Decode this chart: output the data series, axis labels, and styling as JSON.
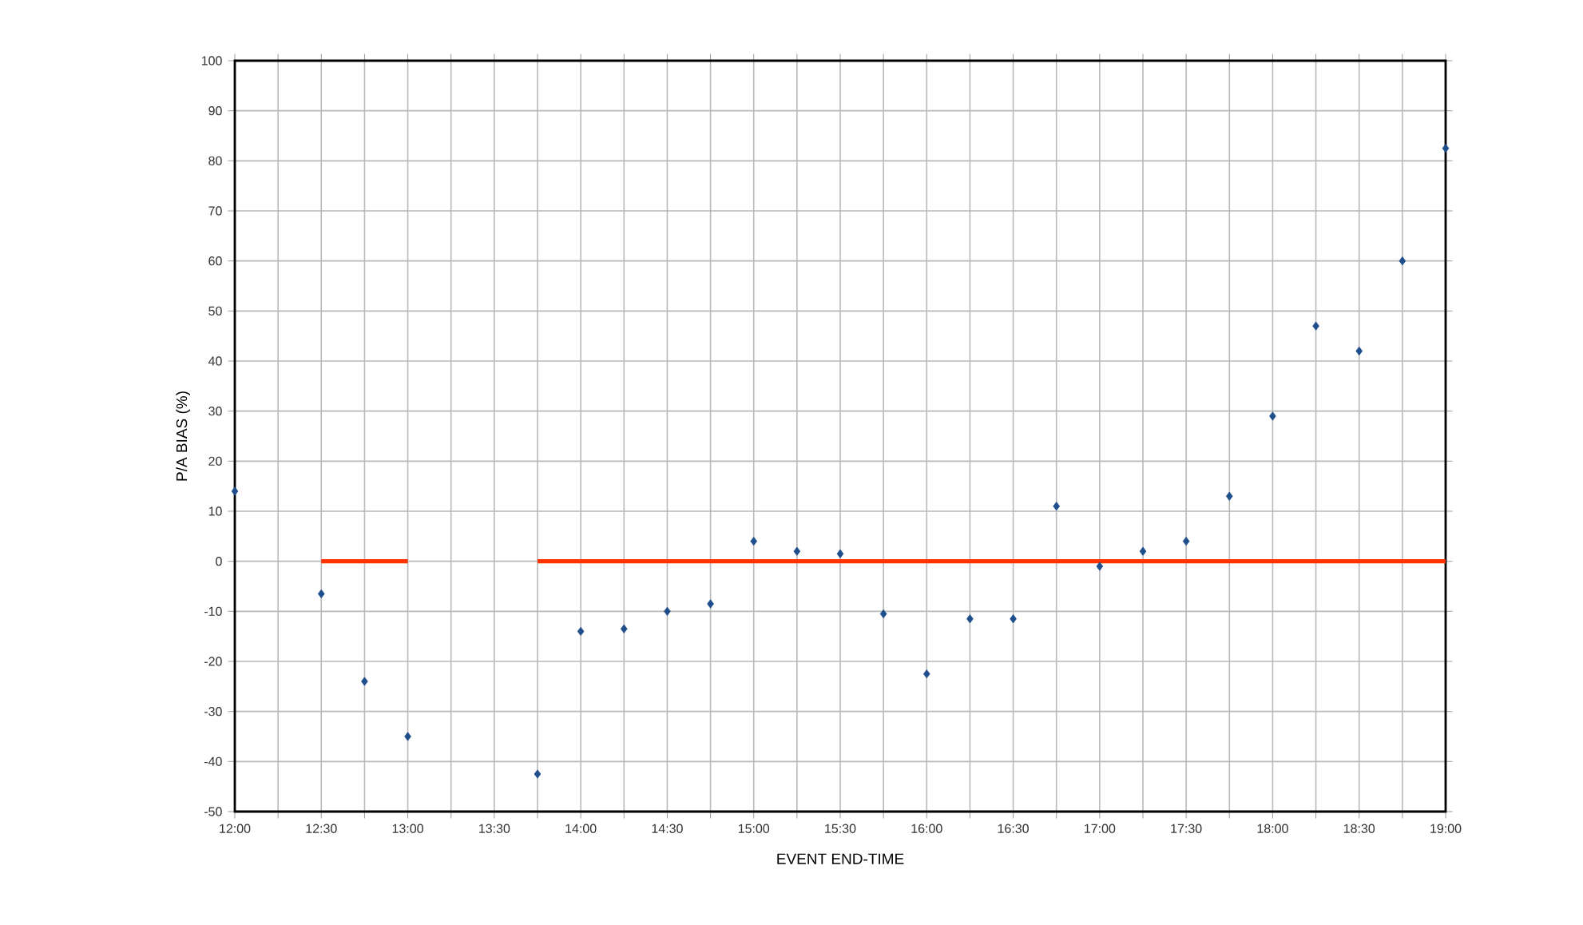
{
  "chart_data": {
    "type": "scatter",
    "xlabel": "EVENT END-TIME",
    "ylabel": "P/A BIAS (%)",
    "xlim": [
      12,
      19
    ],
    "ylim": [
      -50,
      100
    ],
    "xticks": [
      {
        "value": 12,
        "label": "12:00"
      },
      {
        "value": 12.25,
        "label": null
      },
      {
        "value": 12.5,
        "label": "12:30"
      },
      {
        "value": 12.75,
        "label": null
      },
      {
        "value": 13,
        "label": "13:00"
      },
      {
        "value": 13.25,
        "label": null
      },
      {
        "value": 13.5,
        "label": "13:30"
      },
      {
        "value": 13.75,
        "label": null
      },
      {
        "value": 14,
        "label": "14:00"
      },
      {
        "value": 14.25,
        "label": null
      },
      {
        "value": 14.5,
        "label": "14:30"
      },
      {
        "value": 14.75,
        "label": null
      },
      {
        "value": 15,
        "label": "15:00"
      },
      {
        "value": 15.25,
        "label": null
      },
      {
        "value": 15.5,
        "label": "15:30"
      },
      {
        "value": 15.75,
        "label": null
      },
      {
        "value": 16,
        "label": "16:00"
      },
      {
        "value": 16.25,
        "label": null
      },
      {
        "value": 16.5,
        "label": "16:30"
      },
      {
        "value": 16.75,
        "label": null
      },
      {
        "value": 17,
        "label": "17:00"
      },
      {
        "value": 17.25,
        "label": null
      },
      {
        "value": 17.5,
        "label": "17:30"
      },
      {
        "value": 17.75,
        "label": null
      },
      {
        "value": 18,
        "label": "18:00"
      },
      {
        "value": 18.25,
        "label": null
      },
      {
        "value": 18.5,
        "label": "18:30"
      },
      {
        "value": 18.75,
        "label": null
      },
      {
        "value": 19,
        "label": "19:00"
      }
    ],
    "yticks": [
      -50,
      -40,
      -30,
      -20,
      -10,
      0,
      10,
      20,
      30,
      40,
      50,
      60,
      70,
      80,
      90,
      100
    ],
    "grid": true,
    "marker": "diamond",
    "series": [
      {
        "color": "#1f4e8c",
        "x": [
          12,
          12.5,
          12.75,
          13,
          13.75,
          14,
          14.25,
          14.5,
          14.75,
          15,
          15.25,
          15.5,
          15.75,
          16,
          16.25,
          16.5,
          16.75,
          17,
          17.25,
          17.5,
          17.75,
          18,
          18.25,
          18.5,
          18.75,
          19
        ],
        "values": [
          14,
          -6.5,
          -24,
          -35,
          -42.5,
          -14,
          -13.5,
          -10,
          -8.5,
          4,
          2,
          1.5,
          -10.5,
          -22.5,
          -11.5,
          -11.5,
          11,
          -1,
          2,
          4,
          13,
          29,
          47,
          42,
          60,
          82.5
        ]
      },
      {
        "type": "line",
        "color": "#ff3300",
        "line_style": "solid",
        "marker": "none",
        "x": [
          12.5,
          12.75,
          13,
          13.25,
          13.5,
          13.75,
          14,
          19
        ],
        "values": [
          0,
          0,
          0,
          null,
          null,
          0,
          0,
          0
        ]
      }
    ]
  }
}
